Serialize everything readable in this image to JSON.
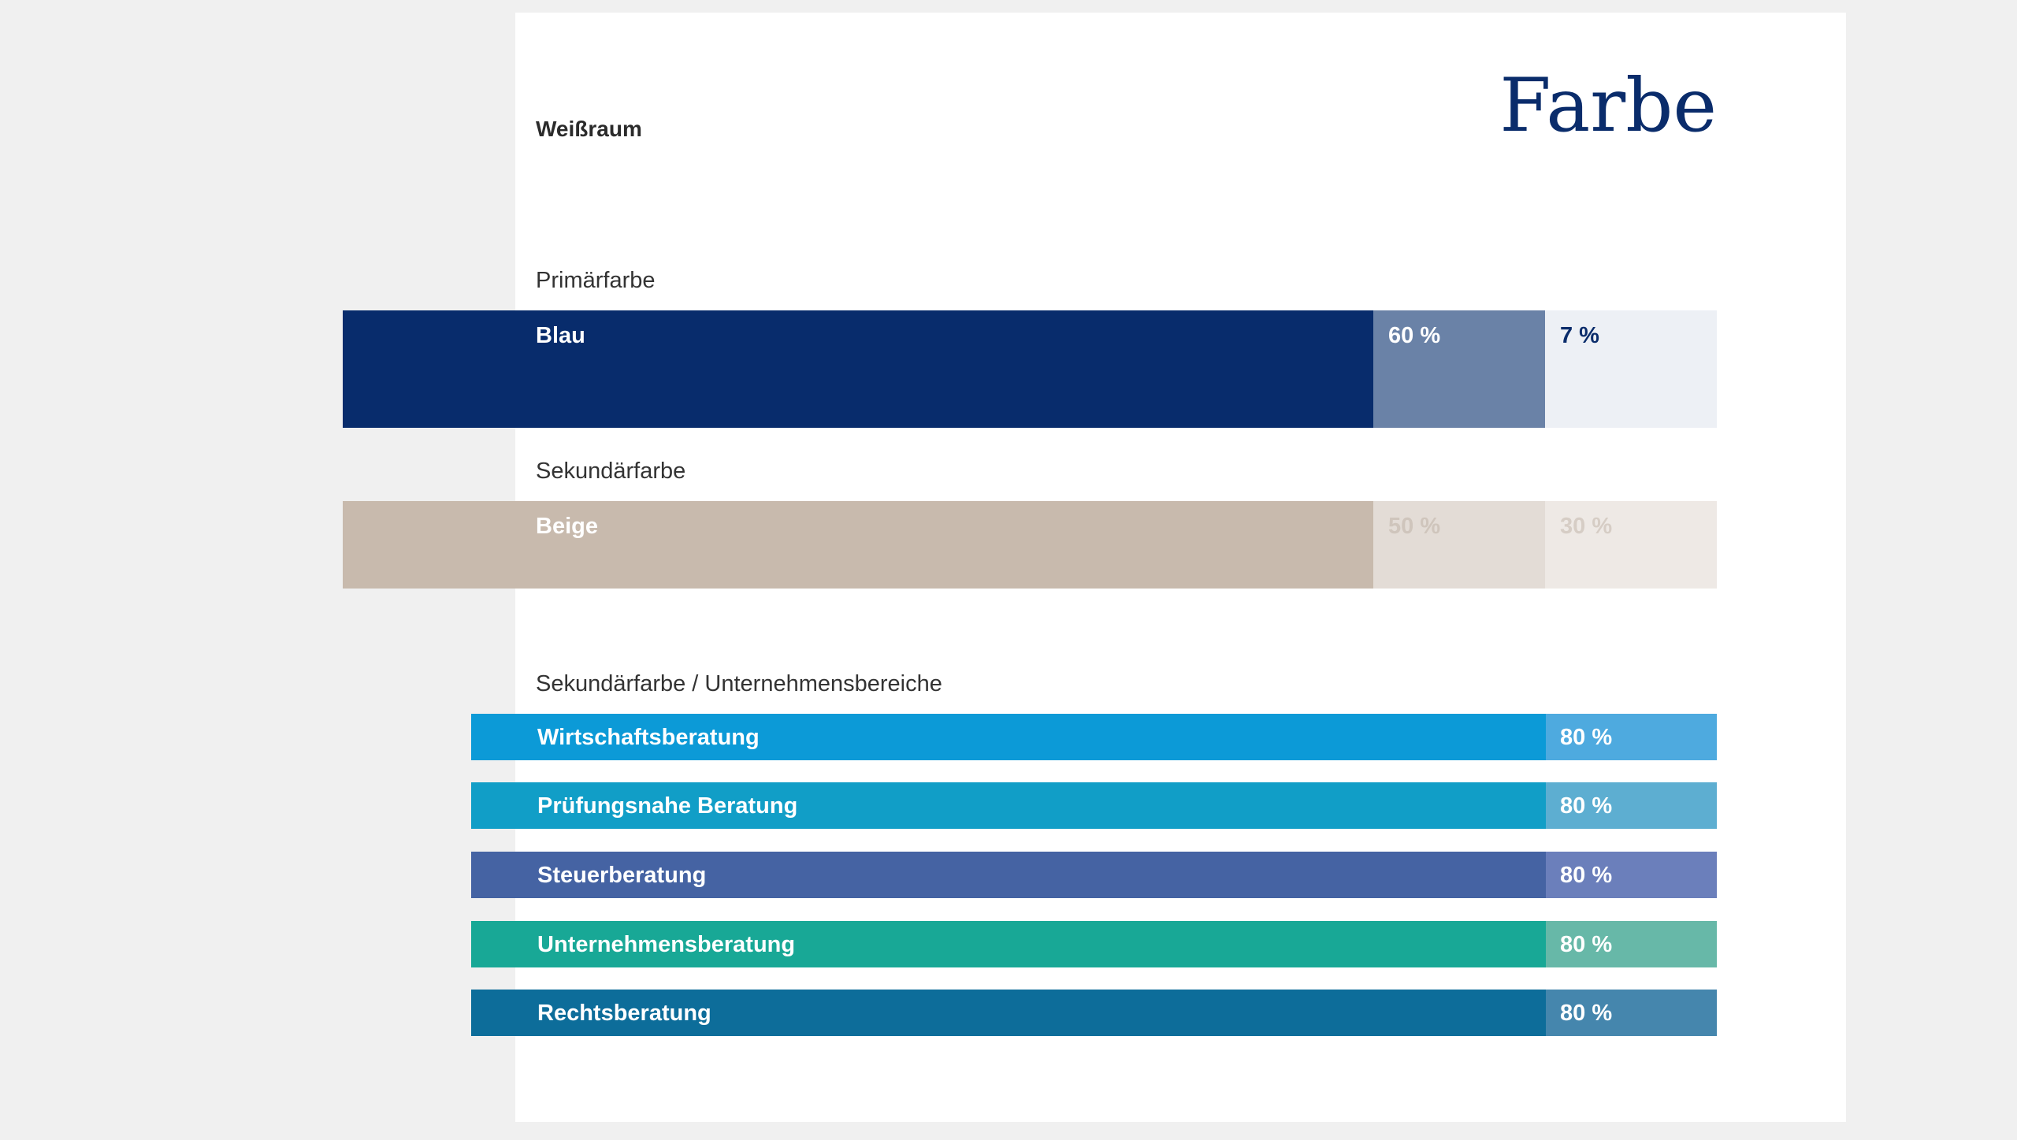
{
  "header": {
    "section": "Weißraum",
    "title": "Farbe"
  },
  "primary": {
    "label": "Primärfarbe",
    "name": "Blau",
    "tint1": "60 %",
    "tint2": "7 %",
    "colors": {
      "main": "#082c6c",
      "tint1": "#6a82a7",
      "tint2": "#edf0f5"
    }
  },
  "secondary": {
    "label": "Sekundärfarbe",
    "name": "Beige",
    "tint1": "50 %",
    "tint2": "30 %",
    "colors": {
      "main": "#c8baad",
      "tint1": "#e3dcd6",
      "tint2": "#eee9e5"
    }
  },
  "divisions": {
    "label": "Sekundärfarbe / Unternehmensbereiche",
    "items": [
      {
        "name": "Wirtschaftsberatung",
        "tint": "80 %",
        "main": "#0c9ad7",
        "light": "#4eaadf"
      },
      {
        "name": "Prüfungsnahe Beratung",
        "tint": "80 %",
        "main": "#119ec7",
        "light": "#5daed1"
      },
      {
        "name": "Steuerberatung",
        "tint": "80 %",
        "main": "#4563a3",
        "light": "#6b7fbb"
      },
      {
        "name": "Unternehmensberatung",
        "tint": "80 %",
        "main": "#18a896",
        "light": "#67b8a8"
      },
      {
        "name": "Rechtsberatung",
        "tint": "80 %",
        "main": "#0d6d9a",
        "light": "#4586ad"
      }
    ]
  }
}
